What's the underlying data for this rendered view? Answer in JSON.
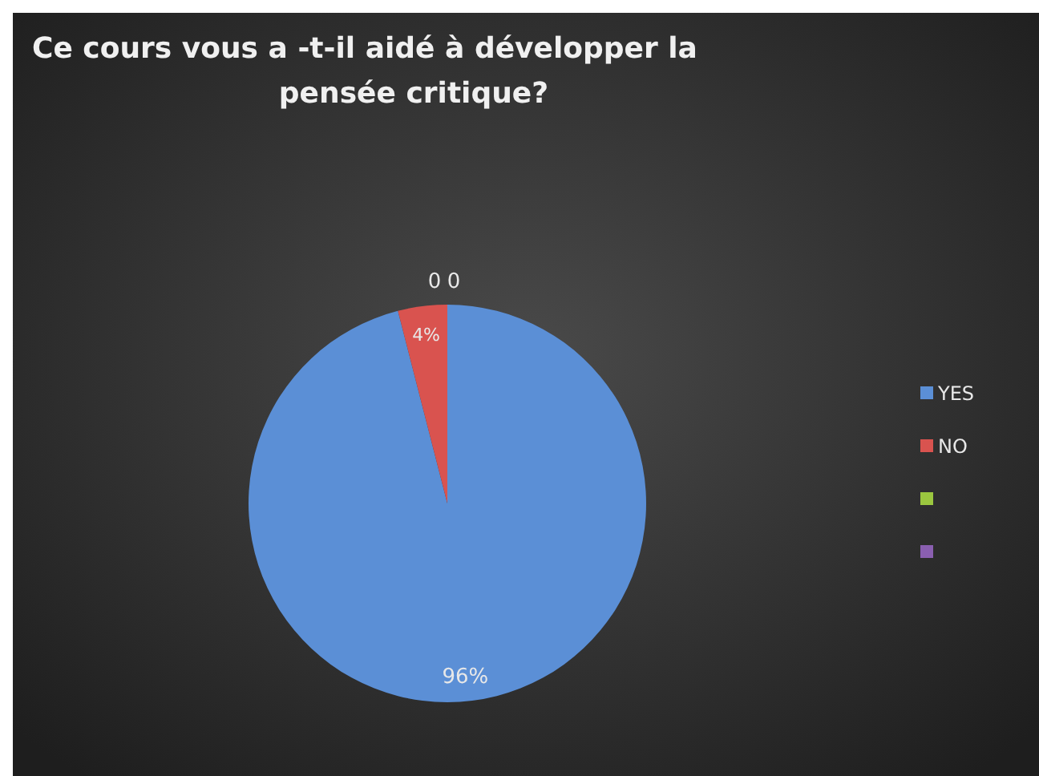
{
  "chart_data": {
    "type": "pie",
    "title": "Ce cours vous a -t-il aidé à développer la pensée critique?",
    "categories": [
      "YES",
      "NO",
      null,
      null
    ],
    "values": [
      96,
      4,
      0,
      0
    ],
    "colors": [
      "#5b8fd6",
      "#d9534f",
      "#9bc73f",
      "#8a5fb0"
    ],
    "value_labels": [
      "96%",
      "4%",
      "0",
      "0"
    ],
    "legend": "right"
  }
}
